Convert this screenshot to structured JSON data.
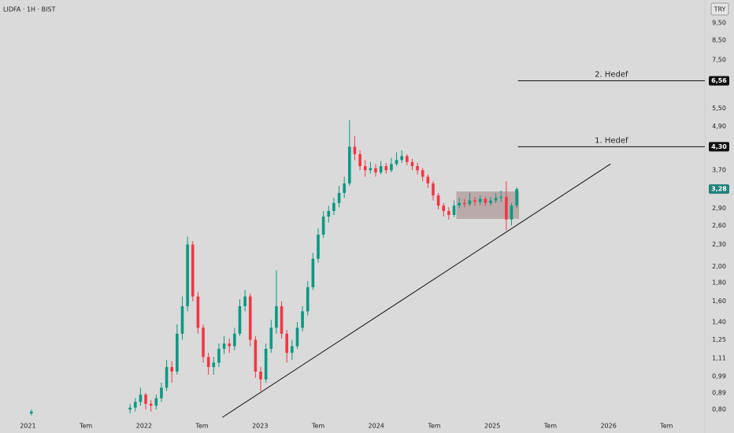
{
  "chart_data": {
    "type": "candlestick",
    "title": "LIDFA · 1H · BIST",
    "currency": "TRY",
    "log_scale": true,
    "up_color": "#089981",
    "down_color": "#f23645",
    "xlim": [
      2020.76,
      2026.83
    ],
    "ylim": [
      0.75,
      11
    ],
    "xticks": [
      2021,
      {
        "value": 2021.5,
        "label": "Tem"
      },
      2022,
      {
        "value": 2022.5,
        "label": "Tem"
      },
      2023,
      {
        "value": 2023.5,
        "label": "Tem"
      },
      2024,
      {
        "value": 2024.5,
        "label": "Tem"
      },
      2025,
      {
        "value": 2025.5,
        "label": "Tem"
      },
      2026,
      {
        "value": 2026.5,
        "label": "Tem"
      }
    ],
    "yticks": [
      {
        "value": 0.8,
        "label": "0,80"
      },
      {
        "value": 0.89,
        "label": "0,89"
      },
      {
        "value": 0.99,
        "label": "0,99"
      },
      {
        "value": 1.11,
        "label": "1,11"
      },
      {
        "value": 1.25,
        "label": "1,25"
      },
      {
        "value": 1.4,
        "label": "1,40"
      },
      {
        "value": 1.6,
        "label": "1,60"
      },
      {
        "value": 1.8,
        "label": "1,80"
      },
      {
        "value": 2.0,
        "label": "2,00"
      },
      {
        "value": 2.3,
        "label": "2,30"
      },
      {
        "value": 2.6,
        "label": "2,60"
      },
      {
        "value": 2.9,
        "label": "2,90"
      },
      {
        "value": 3.7,
        "label": "3,70"
      },
      {
        "value": 4.9,
        "label": "4,90"
      },
      {
        "value": 5.5,
        "label": "5,50"
      },
      {
        "value": 7.5,
        "label": "7,50"
      },
      {
        "value": 8.5,
        "label": "8,50"
      },
      {
        "value": 9.5,
        "label": "9,50"
      }
    ],
    "x": [
      2021.03,
      2021.88,
      2021.925,
      2021.97,
      2022.015,
      2022.06,
      2022.105,
      2022.15,
      2022.195,
      2022.24,
      2022.285,
      2022.33,
      2022.375,
      2022.42,
      2022.465,
      2022.51,
      2022.555,
      2022.6,
      2022.645,
      2022.69,
      2022.735,
      2022.78,
      2022.825,
      2022.87,
      2022.915,
      2022.96,
      2023.005,
      2023.05,
      2023.095,
      2023.14,
      2023.185,
      2023.23,
      2023.275,
      2023.32,
      2023.365,
      2023.41,
      2023.455,
      2023.5,
      2023.545,
      2023.59,
      2023.635,
      2023.68,
      2023.725,
      2023.77,
      2023.815,
      2023.86,
      2023.905,
      2023.95,
      2023.995,
      2024.04,
      2024.085,
      2024.13,
      2024.175,
      2024.22,
      2024.265,
      2024.31,
      2024.355,
      2024.4,
      2024.445,
      2024.49,
      2024.535,
      2024.58,
      2024.625,
      2024.67,
      2024.715,
      2024.76,
      2024.805,
      2024.85,
      2024.895,
      2024.94,
      2024.985,
      2025.03,
      2025.075,
      2025.12,
      2025.165,
      2025.21
    ],
    "open": [
      0.78,
      0.8,
      0.81,
      0.84,
      0.88,
      0.83,
      0.82,
      0.86,
      0.92,
      1.05,
      1.02,
      1.3,
      1.55,
      2.3,
      1.65,
      1.35,
      1.12,
      1.05,
      1.08,
      1.18,
      1.22,
      1.2,
      1.3,
      1.55,
      1.65,
      1.25,
      1.02,
      0.97,
      1.18,
      1.35,
      1.55,
      1.3,
      1.15,
      1.2,
      1.35,
      1.5,
      1.75,
      2.1,
      2.45,
      2.75,
      2.85,
      3.0,
      3.2,
      3.4,
      4.3,
      4.1,
      3.8,
      3.7,
      3.75,
      3.65,
      3.8,
      3.7,
      3.85,
      3.95,
      4.05,
      3.9,
      3.8,
      3.7,
      3.55,
      3.4,
      3.15,
      2.95,
      2.85,
      2.78,
      2.95,
      3.0,
      2.98,
      3.05,
      3.02,
      3.08,
      3.0,
      3.05,
      3.1,
      3.12,
      2.7,
      2.95
    ],
    "high": [
      0.8,
      0.83,
      0.86,
      0.92,
      0.89,
      0.85,
      0.88,
      0.95,
      1.1,
      1.09,
      1.38,
      1.65,
      2.42,
      2.35,
      1.7,
      1.38,
      1.15,
      1.12,
      1.22,
      1.28,
      1.26,
      1.35,
      1.62,
      1.72,
      1.68,
      1.28,
      1.05,
      1.22,
      1.42,
      1.95,
      1.6,
      1.33,
      1.25,
      1.4,
      1.55,
      1.82,
      2.18,
      2.55,
      2.85,
      2.95,
      3.1,
      3.35,
      3.55,
      5.1,
      4.6,
      4.2,
      3.95,
      3.9,
      3.85,
      3.92,
      3.88,
      4.0,
      4.15,
      4.2,
      4.1,
      3.98,
      3.88,
      3.75,
      3.6,
      3.45,
      3.2,
      3.0,
      2.92,
      3.05,
      3.1,
      3.08,
      3.2,
      3.12,
      3.15,
      3.12,
      3.12,
      3.2,
      3.25,
      3.45,
      3.0,
      3.32
    ],
    "low": [
      0.77,
      0.78,
      0.79,
      0.82,
      0.8,
      0.79,
      0.8,
      0.84,
      0.9,
      0.95,
      1.0,
      1.25,
      1.5,
      1.6,
      1.3,
      1.08,
      1.0,
      1.0,
      1.05,
      1.14,
      1.15,
      1.17,
      1.28,
      1.5,
      1.2,
      0.98,
      0.9,
      0.95,
      1.15,
      1.3,
      1.26,
      1.08,
      1.1,
      1.18,
      1.32,
      1.46,
      1.72,
      2.05,
      2.4,
      2.65,
      2.78,
      2.92,
      3.1,
      3.35,
      3.95,
      3.7,
      3.55,
      3.62,
      3.55,
      3.6,
      3.62,
      3.65,
      3.8,
      3.88,
      3.82,
      3.7,
      3.6,
      3.45,
      3.3,
      3.05,
      2.88,
      2.75,
      2.7,
      2.74,
      2.9,
      2.92,
      2.94,
      2.95,
      2.96,
      2.94,
      2.95,
      3.0,
      3.02,
      2.52,
      2.6,
      2.9
    ],
    "close": [
      0.79,
      0.81,
      0.84,
      0.88,
      0.83,
      0.82,
      0.86,
      0.92,
      1.05,
      1.02,
      1.3,
      1.55,
      2.3,
      1.65,
      1.35,
      1.12,
      1.05,
      1.08,
      1.18,
      1.22,
      1.2,
      1.3,
      1.55,
      1.65,
      1.25,
      1.02,
      0.97,
      1.18,
      1.35,
      1.55,
      1.3,
      1.15,
      1.2,
      1.35,
      1.5,
      1.75,
      2.1,
      2.45,
      2.75,
      2.85,
      3.0,
      3.2,
      3.4,
      4.3,
      4.1,
      3.8,
      3.7,
      3.75,
      3.65,
      3.8,
      3.7,
      3.85,
      3.95,
      4.05,
      3.9,
      3.8,
      3.7,
      3.55,
      3.4,
      3.15,
      2.95,
      2.85,
      2.78,
      2.95,
      3.0,
      2.98,
      3.05,
      3.02,
      3.08,
      3.0,
      3.05,
      3.1,
      3.12,
      2.7,
      2.95,
      3.28
    ],
    "last_price": {
      "value": 3.28,
      "label": "3,28",
      "color": "#22807a"
    },
    "targets": [
      {
        "text": "2. Hedef",
        "value": 6.56,
        "label": "6,56",
        "x_start": 2025.22
      },
      {
        "text": "1. Hedef",
        "value": 4.3,
        "label": "4,30",
        "x_start": 2025.22
      }
    ],
    "trendline": {
      "x": [
        2022.675,
        2026.017
      ],
      "y": [
        0.761,
        3.85
      ]
    },
    "zone": {
      "x": [
        2024.69,
        2025.23
      ],
      "y": [
        2.71,
        3.23
      ],
      "color": "rgba(125,80,80,0.35)"
    }
  }
}
